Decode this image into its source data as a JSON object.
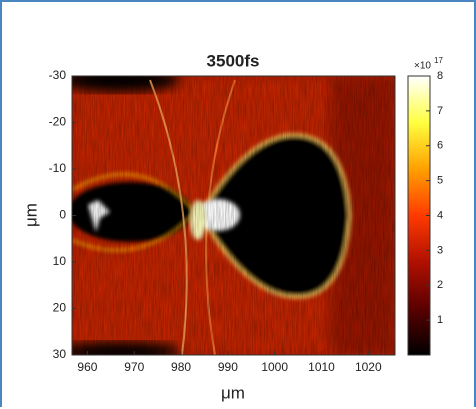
{
  "chart_data": {
    "type": "heatmap",
    "title": "3500fs",
    "x_label": "μm",
    "y_label": "μm",
    "xlim": [
      956.7,
      1025.7
    ],
    "xticks": [
      960,
      970,
      980,
      990,
      1000,
      1010,
      1020
    ],
    "ylim": [
      -30,
      30
    ],
    "yticks": [
      -30,
      -20,
      -10,
      0,
      10,
      20,
      30
    ],
    "y_direction": "reverse",
    "clim": [
      0,
      8
    ],
    "cticks": [
      1,
      2,
      3,
      4,
      5,
      6,
      7,
      8
    ],
    "colorbar_multiplier": "×10",
    "colorbar_exponent": "17",
    "colormap": [
      "#000000",
      "#5a0000",
      "#b01000",
      "#ff3a00",
      "#ffa000",
      "#ffff40",
      "#ffffff"
    ]
  }
}
